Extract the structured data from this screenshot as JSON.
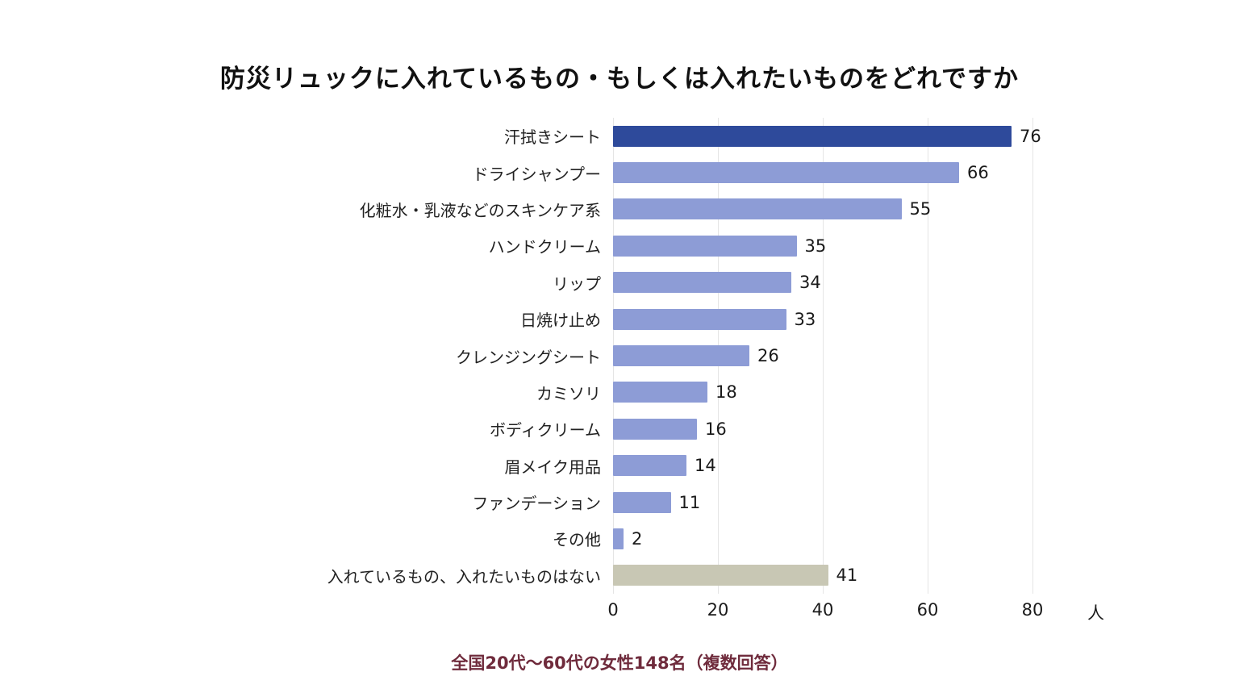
{
  "title": "防災リュックに入れているもの・もしくは入れたいものをどれですか",
  "footer": "全国20代〜60代の女性148名（複数回答）",
  "chart_data": {
    "type": "bar",
    "orientation": "horizontal",
    "title": "防災リュックに入れているもの・もしくは入れたいものをどれですか",
    "categories": [
      "汗拭きシート",
      "ドライシャンプー",
      "化粧水・乳液などのスキンケア系",
      "ハンドクリーム",
      "リップ",
      "日焼け止め",
      "クレンジングシート",
      "カミソリ",
      "ボディクリーム",
      "眉メイク用品",
      "ファンデーション",
      "その他",
      "入れているもの、入れたいものはない"
    ],
    "values": [
      76,
      66,
      55,
      35,
      34,
      33,
      26,
      18,
      16,
      14,
      11,
      2,
      41
    ],
    "bar_styles": [
      "highlight",
      "normal",
      "normal",
      "normal",
      "normal",
      "normal",
      "normal",
      "normal",
      "normal",
      "normal",
      "normal",
      "normal",
      "muted"
    ],
    "colors": {
      "highlight": "#2e4a9b",
      "normal": "#8d9cd6",
      "muted": "#c8c7b4",
      "gridline": "#e5e5e5",
      "footer_text": "#6f2b3c"
    },
    "x_ticks": [
      0,
      20,
      40,
      60,
      80
    ],
    "xlim": [
      0,
      80
    ],
    "unit_label": "人",
    "grid": true,
    "legend": false,
    "source_note": "全国20代〜60代の女性148名（複数回答）"
  }
}
